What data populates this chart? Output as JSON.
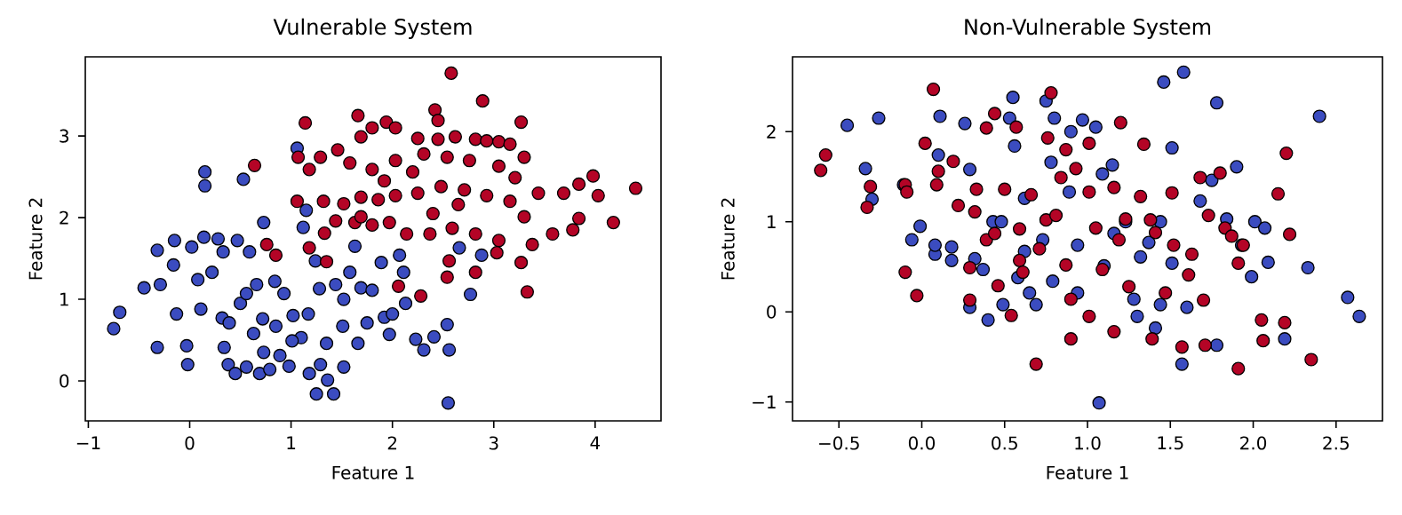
{
  "chart_data": [
    {
      "type": "scatter",
      "title": "Vulnerable System",
      "xlabel": "Feature 1",
      "ylabel": "Feature 2",
      "marker": "circle",
      "xlim": [
        -1.03,
        4.65
      ],
      "ylim": [
        -0.49,
        3.97
      ],
      "xticks": [
        {
          "value": -1,
          "label": "−1"
        },
        0,
        1,
        2,
        3,
        4
      ],
      "yticks": [
        0,
        1,
        2,
        3
      ],
      "series": [
        {
          "color": "#3b4cc0",
          "x": [
            -0.75,
            -0.69,
            -0.45,
            -0.29,
            -0.32,
            -0.32,
            -0.16,
            -0.15,
            -0.13,
            -0.03,
            -0.02,
            0.02,
            0.08,
            0.11,
            0.15,
            0.15,
            0.14,
            0.22,
            0.28,
            0.32,
            0.34,
            0.38,
            0.45,
            0.47,
            0.5,
            0.56,
            0.59,
            0.63,
            0.66,
            0.69,
            0.72,
            0.73,
            0.79,
            0.85,
            0.89,
            0.93,
            0.98,
            1.02,
            1.06,
            1.1,
            1.12,
            1.17,
            1.18,
            1.25,
            1.28,
            1.36,
            1.42,
            1.35,
            1.44,
            1.51,
            1.52,
            1.58,
            1.63,
            1.66,
            1.69,
            1.8,
            1.89,
            1.92,
            1.97,
            2.07,
            2.11,
            2.13,
            2.23,
            2.31,
            2.41,
            2.54,
            2.56,
            2.55,
            2.66,
            2.77,
            2.88,
            0.53,
            1.15,
            0.33,
            0.84,
            1.24,
            0.56,
            0.39,
            1.01,
            1.52,
            1.75,
            2.0,
            1.29,
            0.73
          ],
          "values": [
            0.64,
            0.84,
            1.14,
            1.18,
            0.41,
            1.6,
            1.42,
            1.72,
            0.82,
            0.43,
            0.2,
            1.64,
            1.24,
            0.88,
            2.56,
            2.39,
            1.76,
            1.33,
            1.74,
            0.77,
            0.41,
            0.2,
            0.09,
            1.72,
            0.95,
            0.17,
            1.58,
            0.58,
            1.18,
            0.09,
            0.76,
            1.94,
            0.14,
            0.67,
            0.31,
            1.07,
            0.18,
            0.8,
            2.85,
            0.53,
            1.88,
            0.82,
            0.09,
            -0.16,
            1.13,
            0.01,
            -0.16,
            0.46,
            1.18,
            0.67,
            0.17,
            1.33,
            1.65,
            0.46,
            1.14,
            1.11,
            1.45,
            0.78,
            0.57,
            1.54,
            1.33,
            0.95,
            0.51,
            0.38,
            0.54,
            0.69,
            0.38,
            -0.27,
            1.63,
            1.06,
            1.54,
            2.47,
            2.09,
            1.58,
            1.22,
            1.47,
            1.07,
            0.71,
            0.49,
            1.0,
            0.71,
            0.82,
            0.2,
            0.35
          ]
        },
        {
          "color": "#b40426",
          "x": [
            2.58,
            2.89,
            1.14,
            1.66,
            3.27,
            2.42,
            2.45,
            0.64,
            1.07,
            1.18,
            1.29,
            1.46,
            1.69,
            1.8,
            1.94,
            2.03,
            2.25,
            2.45,
            2.62,
            2.82,
            2.93,
            3.05,
            3.16,
            3.3,
            1.58,
            1.8,
            2.03,
            2.2,
            2.31,
            2.54,
            2.76,
            3.05,
            3.21,
            3.44,
            3.69,
            3.84,
            3.98,
            4.03,
            4.4,
            1.06,
            1.32,
            1.52,
            1.69,
            1.86,
            2.03,
            2.25,
            2.48,
            2.71,
            2.93,
            3.16,
            3.3,
            3.84,
            4.18,
            3.58,
            3.78,
            3.38,
            1.44,
            1.63,
            1.8,
            1.97,
            2.14,
            2.37,
            2.59,
            2.82,
            3.05,
            3.03,
            3.27,
            2.82,
            2.54,
            2.56,
            2.06,
            2.28,
            3.33,
            1.35,
            1.18,
            0.85,
            0.76,
            1.33,
            1.69,
            2.4,
            1.92,
            2.65
          ],
          "values": [
            3.77,
            3.43,
            3.16,
            3.25,
            3.17,
            3.32,
            3.19,
            2.64,
            2.74,
            2.59,
            2.74,
            2.83,
            2.99,
            3.1,
            3.17,
            3.1,
            2.97,
            2.96,
            2.99,
            2.96,
            2.94,
            2.93,
            2.9,
            2.74,
            2.67,
            2.59,
            2.7,
            2.56,
            2.78,
            2.74,
            2.7,
            2.63,
            2.49,
            2.3,
            2.3,
            2.41,
            2.51,
            2.27,
            2.36,
            2.2,
            2.2,
            2.17,
            2.25,
            2.22,
            2.27,
            2.3,
            2.38,
            2.34,
            2.27,
            2.2,
            2.01,
            1.99,
            1.94,
            1.8,
            1.85,
            1.67,
            1.96,
            1.94,
            1.91,
            1.94,
            1.8,
            1.8,
            1.87,
            1.8,
            1.72,
            1.57,
            1.45,
            1.33,
            1.27,
            1.47,
            1.16,
            1.04,
            1.09,
            1.46,
            1.63,
            1.54,
            1.67,
            1.81,
            2.01,
            2.05,
            2.45,
            2.16
          ]
        }
      ]
    },
    {
      "type": "scatter",
      "title": "Non-Vulnerable System",
      "xlabel": "Feature 1",
      "ylabel": "Feature 2",
      "marker": "circle",
      "xlim": [
        -0.78,
        2.78
      ],
      "ylim": [
        -1.21,
        2.83
      ],
      "xticks": [
        {
          "value": -0.5,
          "label": "−0.5"
        },
        {
          "value": 0,
          "label": "0.0"
        },
        0.5,
        {
          "value": 1,
          "label": "1.0"
        },
        1.5,
        {
          "value": 2,
          "label": "2.0"
        },
        2.5
      ],
      "yticks": [
        {
          "value": -1,
          "label": "−1"
        },
        0,
        1,
        2
      ],
      "series": [
        {
          "color": "#3b4cc0",
          "x": [
            -0.45,
            -0.26,
            -0.34,
            -0.3,
            -0.11,
            -0.06,
            -0.01,
            0.08,
            0.08,
            0.11,
            0.1,
            0.18,
            0.18,
            0.26,
            0.29,
            0.32,
            0.29,
            0.4,
            0.43,
            0.37,
            0.49,
            0.55,
            0.56,
            0.53,
            0.58,
            0.62,
            0.65,
            0.69,
            0.75,
            0.78,
            0.8,
            0.79,
            0.89,
            0.9,
            0.97,
            1.05,
            1.07,
            1.09,
            1.1,
            1.15,
            1.23,
            1.28,
            1.3,
            1.32,
            1.37,
            1.41,
            1.46,
            1.44,
            1.51,
            1.51,
            1.58,
            1.57,
            1.6,
            1.68,
            1.75,
            1.78,
            1.78,
            1.84,
            1.9,
            1.93,
            1.99,
            2.01,
            2.07,
            2.09,
            2.19,
            2.33,
            2.4,
            2.57,
            2.64,
            0.94,
            1.16,
            1.44,
            0.73,
            0.62,
            0.48,
            0.94
          ],
          "values": [
            2.07,
            2.15,
            1.59,
            1.25,
            1.41,
            0.8,
            0.95,
            0.64,
            0.74,
            2.17,
            1.74,
            0.72,
            0.57,
            2.09,
            1.58,
            0.59,
            0.05,
            -0.09,
            1.0,
            0.47,
            0.08,
            2.38,
            1.84,
            2.15,
            0.38,
            0.67,
            0.21,
            0.08,
            2.34,
            1.66,
            2.15,
            0.34,
            1.33,
            2.0,
            2.13,
            2.05,
            -1.01,
            1.53,
            0.51,
            1.63,
            1.0,
            0.14,
            -0.05,
            0.61,
            0.77,
            -0.18,
            2.55,
            0.08,
            1.82,
            0.54,
            2.66,
            -0.58,
            0.05,
            1.23,
            1.46,
            2.32,
            -0.37,
            1.03,
            1.61,
            0.74,
            0.39,
            1.0,
            0.93,
            0.55,
            -0.3,
            0.49,
            2.17,
            0.16,
            -0.05,
            0.74,
            0.87,
            1.0,
            0.8,
            1.26,
            1.0,
            0.21
          ]
        },
        {
          "color": "#b40426",
          "x": [
            -0.61,
            -0.58,
            -0.33,
            -0.31,
            -0.1,
            -0.09,
            -0.1,
            -0.03,
            0.02,
            0.07,
            0.1,
            0.09,
            0.19,
            0.22,
            0.29,
            0.29,
            0.32,
            0.33,
            0.39,
            0.39,
            0.44,
            0.46,
            0.5,
            0.54,
            0.57,
            0.59,
            0.59,
            0.61,
            0.69,
            0.71,
            0.75,
            0.76,
            0.78,
            0.81,
            0.87,
            0.87,
            0.9,
            0.93,
            0.9,
            1.01,
            1.01,
            1.05,
            1.09,
            1.16,
            1.16,
            1.2,
            1.23,
            1.25,
            1.32,
            1.34,
            1.38,
            1.41,
            1.39,
            1.47,
            1.51,
            1.52,
            1.57,
            1.61,
            1.63,
            1.68,
            1.7,
            1.71,
            1.73,
            1.8,
            1.83,
            1.87,
            1.91,
            1.91,
            1.94,
            2.05,
            2.06,
            2.15,
            2.19,
            2.2,
            2.22,
            2.35,
            1.01,
            0.84,
            1.19,
            0.66,
            0.44
          ],
          "values": [
            1.57,
            1.74,
            1.16,
            1.39,
            1.41,
            1.33,
            0.44,
            0.18,
            1.87,
            2.47,
            1.56,
            1.41,
            1.67,
            1.18,
            0.49,
            0.13,
            1.11,
            1.36,
            2.04,
            0.8,
            2.2,
            0.29,
            1.36,
            -0.04,
            2.05,
            0.92,
            0.57,
            0.44,
            -0.58,
            0.7,
            1.02,
            1.93,
            2.43,
            1.07,
            0.52,
            1.8,
            0.14,
            1.59,
            -0.3,
            -0.05,
            1.87,
            0.93,
            0.47,
            1.38,
            -0.22,
            2.1,
            1.03,
            0.28,
            1.28,
            1.86,
            1.02,
            0.88,
            -0.3,
            0.21,
            1.32,
            0.74,
            -0.39,
            0.41,
            0.64,
            1.49,
            0.13,
            -0.37,
            1.07,
            1.54,
            0.93,
            0.84,
            -0.63,
            0.54,
            0.74,
            -0.09,
            -0.32,
            1.31,
            -0.12,
            1.76,
            0.86,
            -0.53,
            1.33,
            1.49,
            0.8,
            1.3,
            0.87
          ]
        }
      ]
    }
  ]
}
